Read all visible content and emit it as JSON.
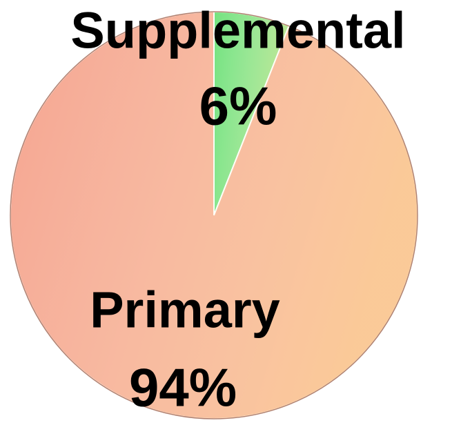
{
  "chart_data": {
    "type": "pie",
    "categories": [
      "Supplemental",
      "Primary"
    ],
    "values": [
      6,
      94
    ],
    "value_labels": [
      "6%",
      "94%"
    ],
    "colors": [
      "#74e27e",
      "#f5a48e"
    ]
  }
}
